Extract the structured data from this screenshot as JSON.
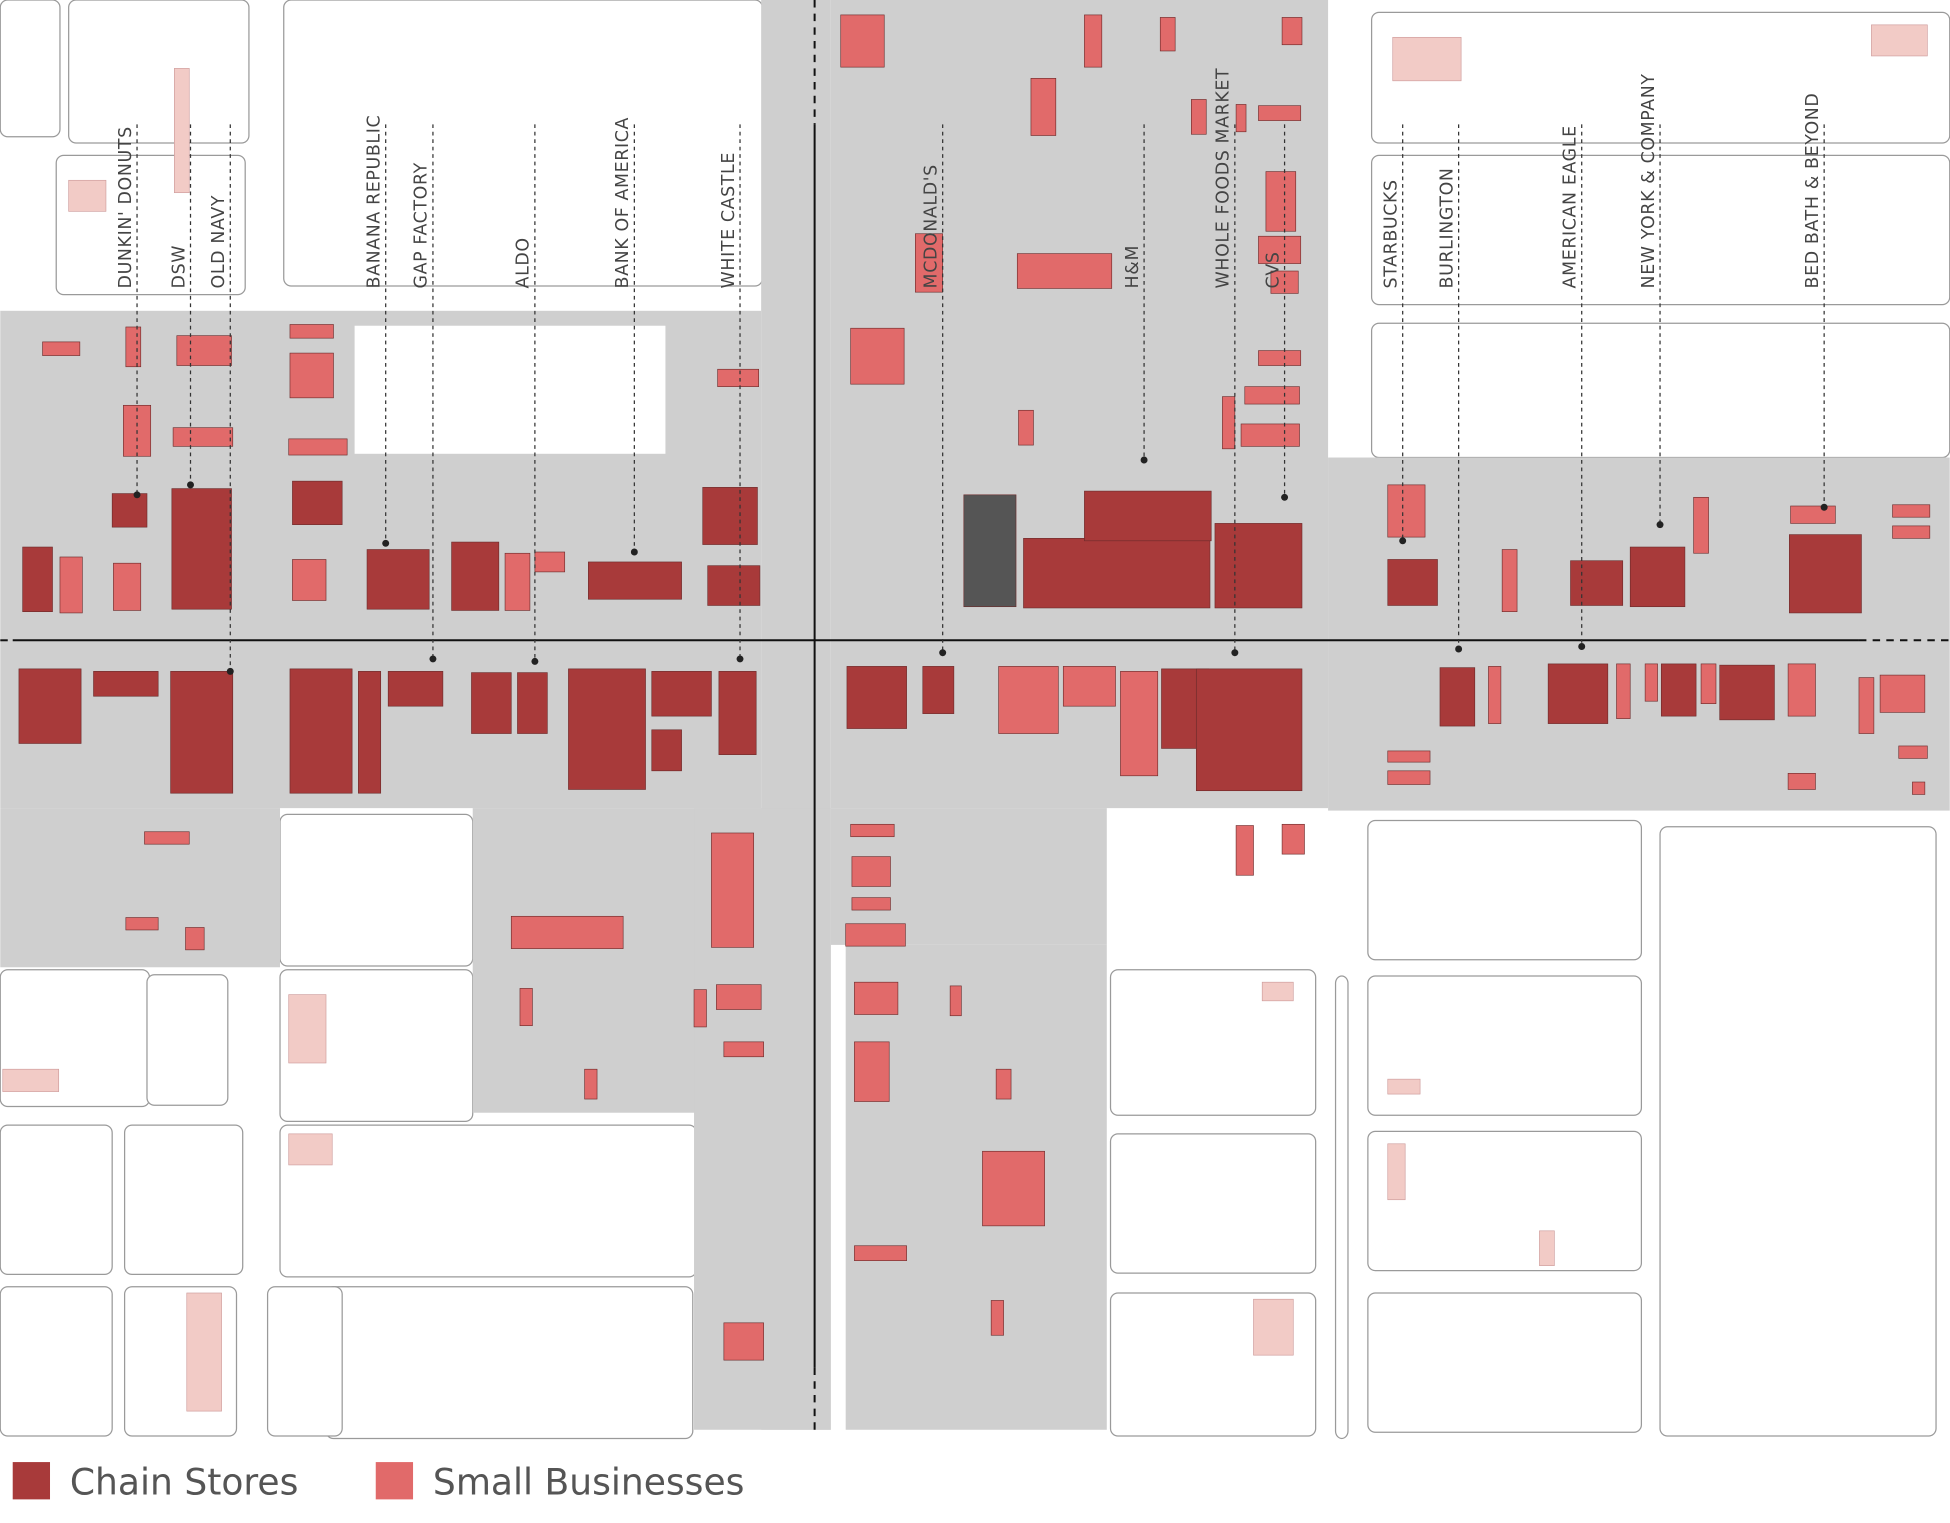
{
  "map": {
    "labels": [
      "DUNKIN' DONUTS",
      "DSW",
      "OLD NAVY",
      "BANANA REPUBLIC",
      "GAP FACTORY",
      "ALDO",
      "BANK OF AMERICA",
      "WHITE CASTLE",
      "MCDONALD'S",
      "H&M",
      "WHOLE FOODS MARKET",
      "CVS",
      "STARBUCKS",
      "BURLINGTON",
      "AMERICAN EAGLE",
      "NEW YORK & COMPANY",
      "BED BATH & BEYOND"
    ],
    "legend": [
      {
        "name": "Chain Stores",
        "color": "#a83a3a"
      },
      {
        "name": "Small Businesses",
        "color": "#e16a6a"
      }
    ]
  }
}
